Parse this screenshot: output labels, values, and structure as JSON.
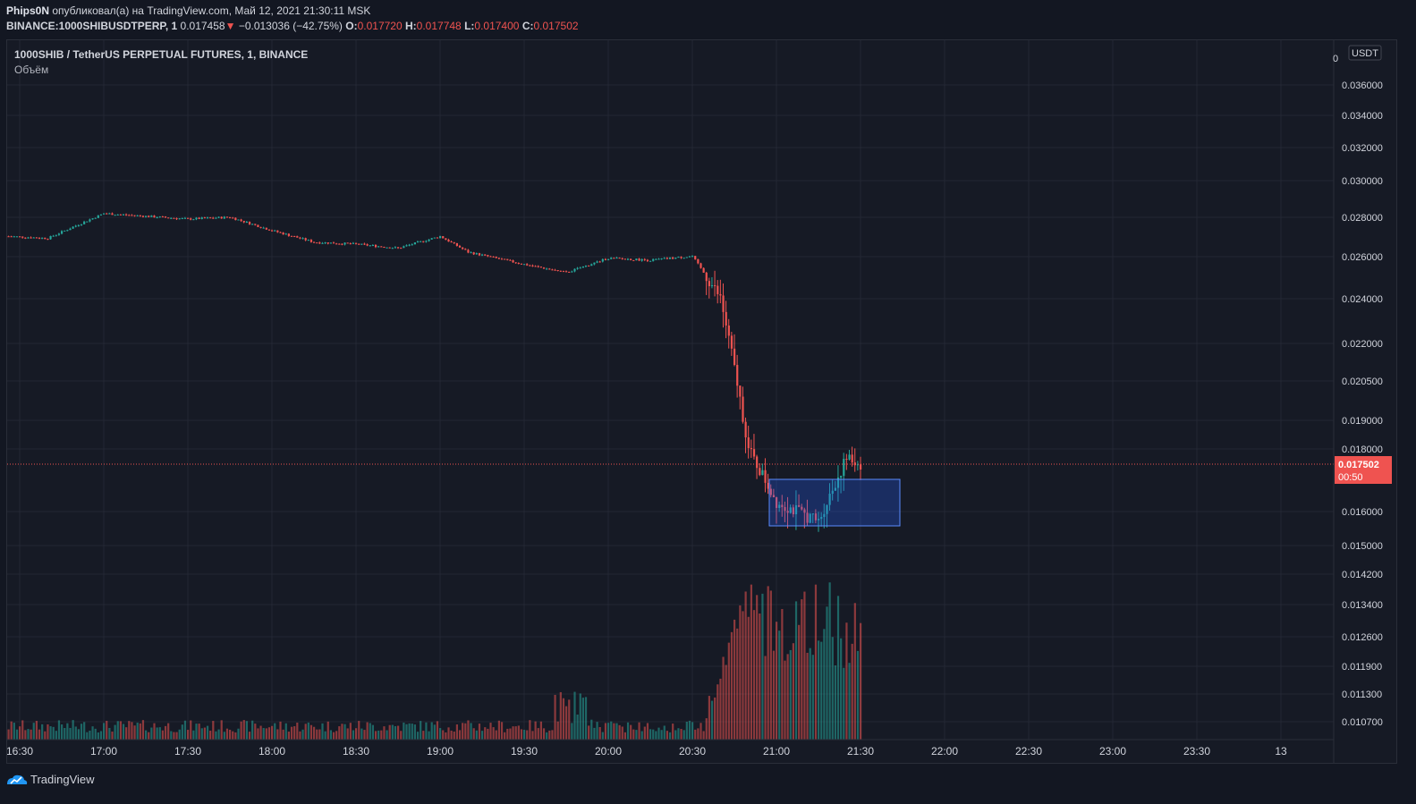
{
  "header": {
    "author": "Phips0N",
    "published_text": "опубликовал(а) на TradingView.com, Май 12, 2021 21:30:11 MSK",
    "symbol": "BINANCE:1000SHIBUSDTPERP, 1",
    "last": "0.017458",
    "change_arrow": "▼",
    "change": "−0.013036 (−42.75%)",
    "o_label": "O:",
    "o": "0.017720",
    "h_label": "H:",
    "h": "0.017748",
    "l_label": "L:",
    "l": "0.017400",
    "c_label": "C:",
    "c": "0.017502"
  },
  "legend": {
    "title": "1000SHIB / TetherUS PERPETUAL FUTURES, 1, BINANCE",
    "volume_label": "Объём"
  },
  "currency_badge": "USDT",
  "top_tick_partial": "0",
  "price_tag": {
    "price": "0.017502",
    "countdown": "00:50"
  },
  "footer": {
    "brand": "TradingView"
  },
  "colors": {
    "up": "#26a69a",
    "down": "#ef5350",
    "background": "#131722",
    "selection": "#2962ff"
  },
  "chart_data": {
    "type": "candlestick",
    "title": "1000SHIB / TetherUS PERPETUAL FUTURES, 1, BINANCE",
    "interval": "1",
    "x_ticks": [
      "16:30",
      "17:00",
      "17:30",
      "18:00",
      "18:30",
      "19:00",
      "19:30",
      "20:00",
      "20:30",
      "21:00",
      "21:30",
      "22:00",
      "22:30",
      "23:00",
      "23:30",
      "13"
    ],
    "y_ticks": [
      "0.036000",
      "0.034000",
      "0.032000",
      "0.030000",
      "0.028000",
      "0.026000",
      "0.024000",
      "0.022000",
      "0.020500",
      "0.019000",
      "0.018000",
      "0.016000",
      "0.015000",
      "0.014200",
      "0.013400",
      "0.012600",
      "0.011900",
      "0.011300",
      "0.010700"
    ],
    "y_scale": "log",
    "price_keypoints": [
      [
        "16:26",
        0.027
      ],
      [
        "16:40",
        0.0269
      ],
      [
        "17:00",
        0.0282
      ],
      [
        "17:30",
        0.0279
      ],
      [
        "17:45",
        0.028
      ],
      [
        "18:00",
        0.0273
      ],
      [
        "18:15",
        0.0267
      ],
      [
        "18:30",
        0.0266
      ],
      [
        "18:45",
        0.0264
      ],
      [
        "19:00",
        0.027
      ],
      [
        "19:10",
        0.0262
      ],
      [
        "19:30",
        0.0256
      ],
      [
        "19:45",
        0.0252
      ],
      [
        "20:00",
        0.0259
      ],
      [
        "20:15",
        0.0258
      ],
      [
        "20:30",
        0.026
      ],
      [
        "20:40",
        0.024
      ],
      [
        "20:50",
        0.018
      ],
      [
        "21:00",
        0.0163
      ],
      [
        "21:15",
        0.0157
      ],
      [
        "21:25",
        0.0177
      ],
      [
        "21:30",
        0.0175
      ]
    ],
    "volume_note": "volume bars rise sharply from 20:35 to 21:25",
    "last_price": 0.017502,
    "annotation_box": {
      "from": "20:56",
      "to": "21:40",
      "price_low": 0.0155,
      "price_high": 0.017
    },
    "grid": true,
    "legend_position": "top-left"
  }
}
